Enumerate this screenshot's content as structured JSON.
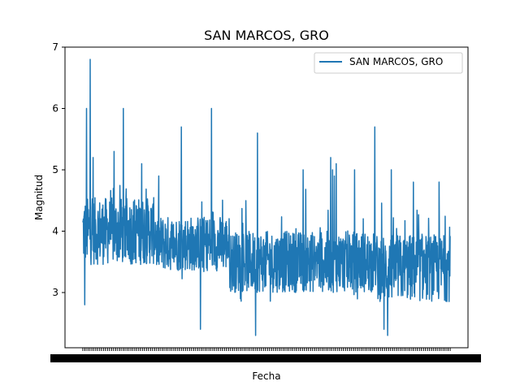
{
  "chart_data": {
    "type": "line",
    "title": "SAN MARCOS, GRO",
    "xlabel": "Fecha",
    "ylabel": "Magnitud",
    "ylim": [
      2.1,
      7.0
    ],
    "yticks": [
      3,
      4,
      5,
      6,
      7
    ],
    "x_tick_labels_legible": false,
    "grid": false,
    "legend_position": "top-right",
    "series": [
      {
        "name": "SAN MARCOS, GRO",
        "color": "#1f77b4",
        "y_range": [
          2.3,
          6.8
        ],
        "segments": [
          {
            "from": 0.0,
            "to": 0.2,
            "center": 4.0,
            "spread": 0.55
          },
          {
            "from": 0.2,
            "to": 0.4,
            "center": 3.8,
            "spread": 0.45
          },
          {
            "from": 0.4,
            "to": 0.6,
            "center": 3.5,
            "spread": 0.5
          },
          {
            "from": 0.6,
            "to": 0.8,
            "center": 3.5,
            "spread": 0.5
          },
          {
            "from": 0.8,
            "to": 1.0,
            "center": 3.4,
            "spread": 0.55
          }
        ],
        "notable_peaks": [
          {
            "pos": 0.005,
            "y": 5.7
          },
          {
            "pos": 0.01,
            "y": 6.0
          },
          {
            "pos": 0.02,
            "y": 6.8
          },
          {
            "pos": 0.028,
            "y": 5.2
          },
          {
            "pos": 0.085,
            "y": 5.3
          },
          {
            "pos": 0.11,
            "y": 6.0
          },
          {
            "pos": 0.16,
            "y": 5.1
          },
          {
            "pos": 0.268,
            "y": 5.7
          },
          {
            "pos": 0.32,
            "y": 5.2
          },
          {
            "pos": 0.35,
            "y": 6.0
          },
          {
            "pos": 0.475,
            "y": 5.6
          },
          {
            "pos": 0.6,
            "y": 5.0
          },
          {
            "pos": 0.675,
            "y": 5.2
          },
          {
            "pos": 0.69,
            "y": 5.1
          },
          {
            "pos": 0.68,
            "y": 5.0
          },
          {
            "pos": 0.685,
            "y": 4.9
          },
          {
            "pos": 0.74,
            "y": 5.0
          },
          {
            "pos": 0.795,
            "y": 5.7
          },
          {
            "pos": 0.84,
            "y": 5.0
          },
          {
            "pos": 0.9,
            "y": 4.8
          },
          {
            "pos": 0.97,
            "y": 4.8
          }
        ],
        "notable_dips": [
          {
            "pos": 0.005,
            "y": 2.8
          },
          {
            "pos": 0.32,
            "y": 2.4
          },
          {
            "pos": 0.47,
            "y": 2.3
          },
          {
            "pos": 0.83,
            "y": 2.3
          },
          {
            "pos": 0.82,
            "y": 2.4
          }
        ]
      }
    ]
  }
}
